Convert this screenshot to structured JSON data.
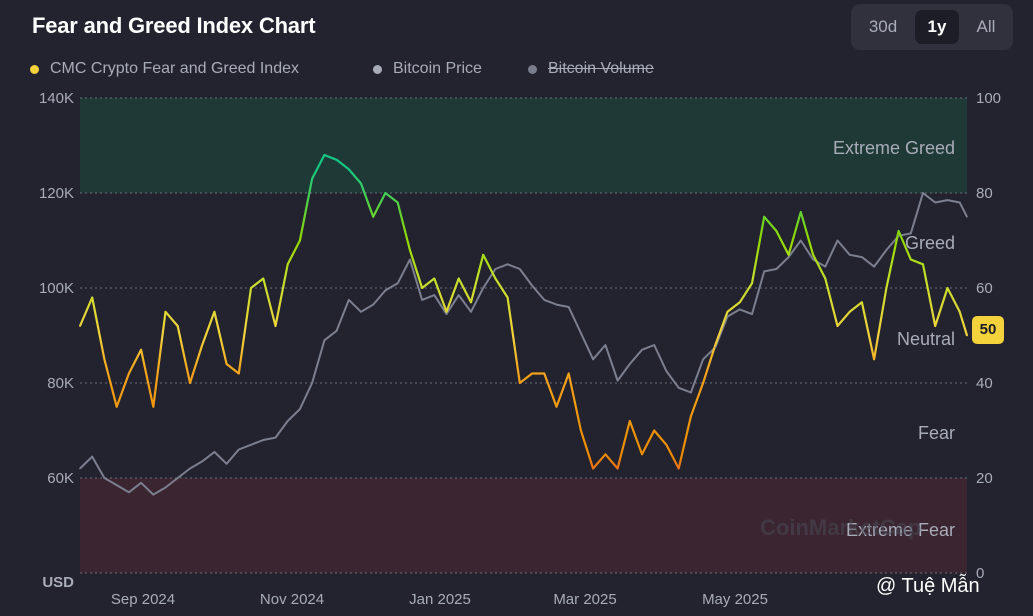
{
  "header": {
    "title": "Fear and Greed Index Chart"
  },
  "range_buttons": [
    {
      "label": "30d",
      "active": false
    },
    {
      "label": "1y",
      "active": true
    },
    {
      "label": "All",
      "active": false
    }
  ],
  "legend": [
    {
      "label": "CMC Crypto Fear and Greed Index",
      "color": "#f3d23c",
      "strikethrough": false
    },
    {
      "label": "Bitcoin Price",
      "color": "#a8acb9",
      "strikethrough": false
    },
    {
      "label": "Bitcoin Volume",
      "color": "#7a7d8c",
      "strikethrough": true
    }
  ],
  "current_value_badge": "50",
  "watermark": "CoinMarketCap",
  "attribution": "@ Tuệ Mẫn",
  "colors": {
    "background": "#22232e",
    "btc_line": "#7b7f8f",
    "extreme_greed_zone": "#1f3a36",
    "extreme_fear_zone": "#3a2530",
    "grid": "#6a6c78"
  },
  "chart_data": {
    "type": "line",
    "left_axis": {
      "label": "USD",
      "ticks": [
        "140K",
        "120K",
        "100K",
        "80K",
        "60K"
      ],
      "ylim": [
        40000,
        140000
      ]
    },
    "right_axis": {
      "ticks": [
        "100",
        "80",
        "60",
        "40",
        "20",
        "0"
      ],
      "ylim": [
        0,
        100
      ]
    },
    "x_ticks": [
      "Sep 2024",
      "Nov 2024",
      "Jan 2025",
      "Mar 2025",
      "May 2025"
    ],
    "x_range": [
      "2024-08-03",
      "2025-08-01"
    ],
    "zones": [
      {
        "name": "Extreme Greed",
        "from": 80,
        "to": 100
      },
      {
        "name": "Greed",
        "value": 70
      },
      {
        "name": "Neutral",
        "value": 50
      },
      {
        "name": "Fear",
        "value": 30
      },
      {
        "name": "Extreme Fear",
        "from": 0,
        "to": 20
      }
    ],
    "series": [
      {
        "name": "CMC Crypto Fear and Greed Index",
        "axis": "right",
        "x": [
          "2024-08-03",
          "2024-08-08",
          "2024-08-13",
          "2024-08-18",
          "2024-08-23",
          "2024-08-28",
          "2024-09-02",
          "2024-09-07",
          "2024-09-12",
          "2024-09-17",
          "2024-09-22",
          "2024-09-27",
          "2024-10-02",
          "2024-10-07",
          "2024-10-12",
          "2024-10-17",
          "2024-10-22",
          "2024-10-27",
          "2024-11-01",
          "2024-11-06",
          "2024-11-11",
          "2024-11-16",
          "2024-11-21",
          "2024-11-26",
          "2024-12-01",
          "2024-12-06",
          "2024-12-11",
          "2024-12-16",
          "2024-12-21",
          "2024-12-26",
          "2024-12-31",
          "2025-01-05",
          "2025-01-10",
          "2025-01-15",
          "2025-01-20",
          "2025-01-25",
          "2025-01-30",
          "2025-02-04",
          "2025-02-09",
          "2025-02-14",
          "2025-02-19",
          "2025-02-24",
          "2025-03-01",
          "2025-03-06",
          "2025-03-11",
          "2025-03-16",
          "2025-03-21",
          "2025-03-26",
          "2025-03-31",
          "2025-04-05",
          "2025-04-10",
          "2025-04-15",
          "2025-04-20",
          "2025-04-25",
          "2025-04-30",
          "2025-05-05",
          "2025-05-10",
          "2025-05-15",
          "2025-05-20",
          "2025-05-25",
          "2025-05-30",
          "2025-06-04",
          "2025-06-09",
          "2025-06-14",
          "2025-06-19",
          "2025-06-24",
          "2025-06-29",
          "2025-07-04",
          "2025-07-09",
          "2025-07-14",
          "2025-07-19",
          "2025-07-24",
          "2025-07-29",
          "2025-08-01"
        ],
        "values": [
          52,
          58,
          45,
          35,
          42,
          47,
          35,
          55,
          52,
          40,
          48,
          55,
          44,
          42,
          60,
          62,
          52,
          65,
          70,
          83,
          88,
          87,
          85,
          82,
          75,
          80,
          78,
          68,
          60,
          62,
          55,
          62,
          57,
          67,
          62,
          58,
          40,
          42,
          42,
          35,
          42,
          30,
          22,
          25,
          22,
          32,
          25,
          30,
          27,
          22,
          33,
          40,
          48,
          55,
          57,
          61,
          75,
          72,
          67,
          76,
          67,
          62,
          52,
          55,
          57,
          45,
          60,
          72,
          66,
          65,
          52,
          60,
          55,
          50
        ]
      },
      {
        "name": "Bitcoin Price",
        "axis": "left",
        "x": [
          "2024-08-03",
          "2024-08-08",
          "2024-08-13",
          "2024-08-18",
          "2024-08-23",
          "2024-08-28",
          "2024-09-02",
          "2024-09-07",
          "2024-09-12",
          "2024-09-17",
          "2024-09-22",
          "2024-09-27",
          "2024-10-02",
          "2024-10-07",
          "2024-10-12",
          "2024-10-17",
          "2024-10-22",
          "2024-10-27",
          "2024-11-01",
          "2024-11-06",
          "2024-11-11",
          "2024-11-16",
          "2024-11-21",
          "2024-11-26",
          "2024-12-01",
          "2024-12-06",
          "2024-12-11",
          "2024-12-16",
          "2024-12-21",
          "2024-12-26",
          "2024-12-31",
          "2025-01-05",
          "2025-01-10",
          "2025-01-15",
          "2025-01-20",
          "2025-01-25",
          "2025-01-30",
          "2025-02-04",
          "2025-02-09",
          "2025-02-14",
          "2025-02-19",
          "2025-02-24",
          "2025-03-01",
          "2025-03-06",
          "2025-03-11",
          "2025-03-16",
          "2025-03-21",
          "2025-03-26",
          "2025-03-31",
          "2025-04-05",
          "2025-04-10",
          "2025-04-15",
          "2025-04-20",
          "2025-04-25",
          "2025-04-30",
          "2025-05-05",
          "2025-05-10",
          "2025-05-15",
          "2025-05-20",
          "2025-05-25",
          "2025-05-30",
          "2025-06-04",
          "2025-06-09",
          "2025-06-14",
          "2025-06-19",
          "2025-06-24",
          "2025-06-29",
          "2025-07-04",
          "2025-07-09",
          "2025-07-14",
          "2025-07-19",
          "2025-07-24",
          "2025-07-29",
          "2025-08-01"
        ],
        "values": [
          62000,
          64500,
          60000,
          58500,
          57000,
          59000,
          56500,
          58000,
          60000,
          62000,
          63500,
          65500,
          63000,
          66000,
          67000,
          68000,
          68500,
          72000,
          74500,
          80000,
          89000,
          91000,
          97500,
          95000,
          96500,
          99500,
          101000,
          106000,
          97500,
          98500,
          94500,
          98500,
          95000,
          100000,
          104000,
          105000,
          104000,
          100500,
          97500,
          96500,
          96000,
          90500,
          85000,
          88000,
          80500,
          84000,
          87000,
          88000,
          82500,
          79000,
          78000,
          85000,
          87500,
          94000,
          95500,
          94500,
          103500,
          104000,
          106500,
          110000,
          106000,
          104500,
          110000,
          107000,
          106500,
          104500,
          108000,
          111000,
          111500,
          120000,
          118000,
          118500,
          118000,
          115000
        ]
      }
    ]
  }
}
